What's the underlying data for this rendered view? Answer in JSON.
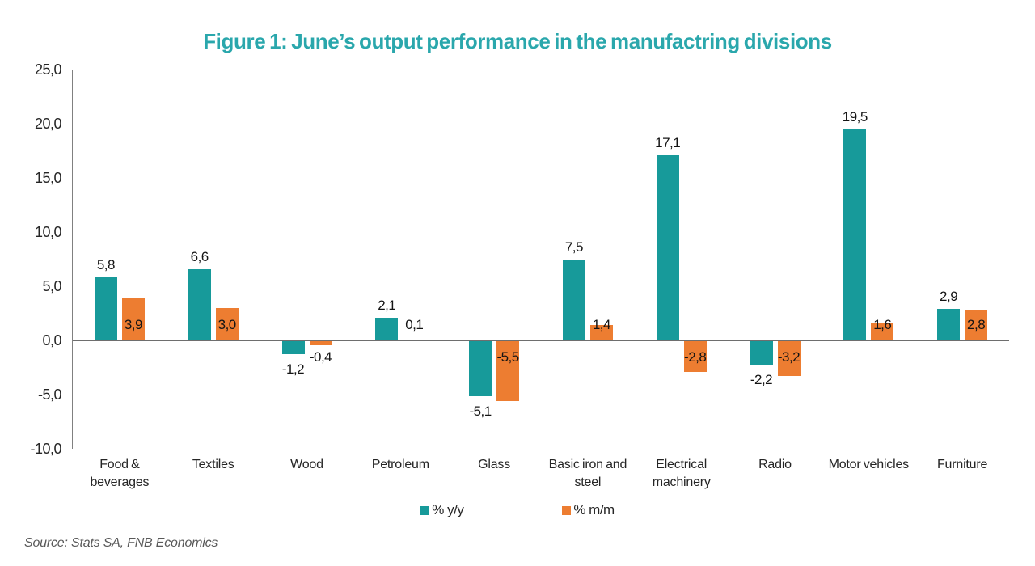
{
  "title": "Figure 1: June’s output performance in the manufactring divisions",
  "source": "Source: Stats SA, FNB Economics",
  "colors": {
    "title": "#2aa7ac",
    "series_yoy": "#179a9a",
    "series_mom": "#ed7d31",
    "axis_line": "#808080",
    "zero_line": "#6e6e6e",
    "tick_text": "#262626",
    "source_text": "#595959"
  },
  "chart_data": {
    "type": "bar",
    "title": "Figure 1: June’s output performance in the manufactring divisions",
    "xlabel": "",
    "ylabel": "",
    "ylim": [
      -10,
      25
    ],
    "grid": false,
    "legend_position": "bottom",
    "decimal_separator": ",",
    "categories": [
      "Food &\nbeverages",
      "Textiles",
      "Wood",
      "Petroleum",
      "Glass",
      "Basic iron and\nsteel",
      "Electrical\nmachinery",
      "Radio",
      "Motor vehicles",
      "Furniture"
    ],
    "series": [
      {
        "name": "% y/y",
        "color": "#179a9a",
        "values": [
          5.8,
          6.6,
          -1.2,
          2.1,
          -5.1,
          7.5,
          17.1,
          -2.2,
          19.5,
          2.9
        ],
        "labels": [
          "5,8",
          "6,6",
          "-1,2",
          "2,1",
          "-5,1",
          "7,5",
          "17,1",
          "-2,2",
          "19,5",
          "2,9"
        ]
      },
      {
        "name": "% m/m",
        "color": "#ed7d31",
        "values": [
          3.9,
          3.0,
          -0.4,
          0.1,
          -5.5,
          1.4,
          -2.8,
          -3.2,
          1.6,
          2.8
        ],
        "labels": [
          "3,9",
          "3,0",
          "-0,4",
          "0,1",
          "-5,5",
          "1,4",
          "-2,8",
          "-3,2",
          "1,6",
          "2,8"
        ]
      }
    ],
    "yticks": [
      {
        "value": 25,
        "label": "25,0"
      },
      {
        "value": 20,
        "label": "20,0"
      },
      {
        "value": 15,
        "label": "15,0"
      },
      {
        "value": 10,
        "label": "10,0"
      },
      {
        "value": 5,
        "label": "5,0"
      },
      {
        "value": 0,
        "label": "0,0"
      },
      {
        "value": -5,
        "label": "-5,0"
      },
      {
        "value": -10,
        "label": "-10,0"
      }
    ],
    "legend": [
      {
        "label": "% y/y",
        "color": "#179a9a"
      },
      {
        "label": "% m/m",
        "color": "#ed7d31"
      }
    ]
  }
}
